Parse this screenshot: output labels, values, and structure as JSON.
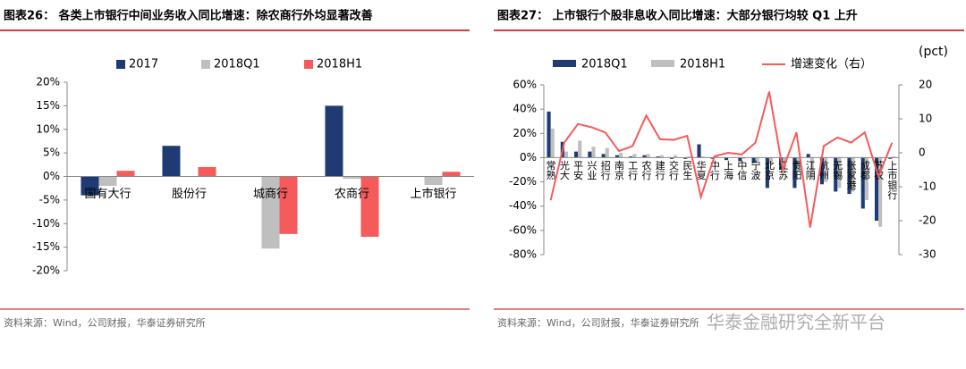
{
  "chart_data": [
    {
      "type": "bar",
      "title": "图表26：  各类上市银行中间业务收入同比增速：除农商行外均显著改善",
      "categories": [
        "国有大行",
        "股份行",
        "城商行",
        "农商行",
        "上市银行"
      ],
      "series": [
        {
          "name": "2017",
          "color": "#1f3b73",
          "values": [
            -4,
            6.5,
            0,
            15,
            0
          ]
        },
        {
          "name": "2018Q1",
          "color": "#bfbfbf",
          "values": [
            -2,
            0,
            -15.3,
            -0.5,
            -1.8
          ]
        },
        {
          "name": "2018H1",
          "color": "#f55b5b",
          "values": [
            1.2,
            2,
            -12.2,
            -12.8,
            1
          ]
        }
      ],
      "ylim": [
        -20,
        20
      ],
      "yticks": [
        {
          "value": -20,
          "label": "-20%"
        },
        {
          "value": -15,
          "label": "-15%"
        },
        {
          "value": -10,
          "label": "-10%"
        },
        {
          "value": -5,
          "label": "-5%"
        },
        {
          "value": 0,
          "label": "0%"
        },
        {
          "value": 5,
          "label": "5%"
        },
        {
          "value": 10,
          "label": "10%"
        },
        {
          "value": 15,
          "label": "15%"
        },
        {
          "value": 20,
          "label": "20%"
        }
      ],
      "source": "资料来源：Wind，公司财报，华泰证券研究所"
    },
    {
      "type": "bar",
      "title": "图表27：  上市银行个股非息收入同比增速：大部分银行均较 Q1 上升",
      "categories": [
        "常熟",
        "光大",
        "平安",
        "兴业",
        "招行",
        "南京",
        "工行",
        "农行",
        "建行",
        "交行",
        "民生",
        "华夏",
        "中行",
        "上海",
        "中信",
        "宁波",
        "北京",
        "江苏",
        "贵阳",
        "江阴",
        "杭州",
        "无锡",
        "张家港",
        "成都",
        "苏农",
        "上市银行"
      ],
      "series": [
        {
          "name": "2018Q1",
          "color": "#1f3b73",
          "values": [
            38,
            13,
            5,
            5,
            3,
            2,
            1,
            2,
            1,
            -1,
            -1,
            11,
            -1,
            -2,
            -3,
            -4,
            -25,
            -10,
            -25,
            3,
            -22,
            -28,
            -30,
            -42,
            -52,
            -1
          ]
        },
        {
          "name": "2018H1",
          "color": "#bfbfbf",
          "values": [
            24,
            5,
            14,
            9,
            8,
            4,
            3,
            3,
            2,
            2,
            1,
            1,
            1,
            0,
            -1,
            -3,
            -5,
            -8,
            -12,
            -18,
            -20,
            -25,
            -28,
            -35,
            -57,
            1
          ]
        },
        {
          "name": "增速变化（右）",
          "color": "#f55b5b",
          "type": "line",
          "axis": "y2",
          "values": [
            -14,
            3,
            8.5,
            7.5,
            6,
            0.5,
            2,
            11,
            4,
            3.8,
            5,
            -13,
            -1,
            0,
            -0.5,
            3,
            18,
            -5,
            6,
            -22,
            2,
            4.5,
            3,
            6,
            -7,
            3
          ]
        }
      ],
      "ylim": [
        -80,
        60
      ],
      "yticks": [
        {
          "value": -80,
          "label": "-80%"
        },
        {
          "value": -60,
          "label": "-60%"
        },
        {
          "value": -40,
          "label": "-40%"
        },
        {
          "value": -20,
          "label": "-20%"
        },
        {
          "value": 0,
          "label": "0%"
        },
        {
          "value": 20,
          "label": "20%"
        },
        {
          "value": 40,
          "label": "40%"
        },
        {
          "value": 60,
          "label": "60%"
        }
      ],
      "y2lim": [
        -30,
        20
      ],
      "y2ticks": [
        -30,
        -20,
        -10,
        0,
        10,
        20
      ],
      "y2label": "(pct)",
      "source": "资料来源：Wind，公司财报，华泰证券研究所"
    }
  ],
  "watermark": "华泰金融研究全新平台"
}
